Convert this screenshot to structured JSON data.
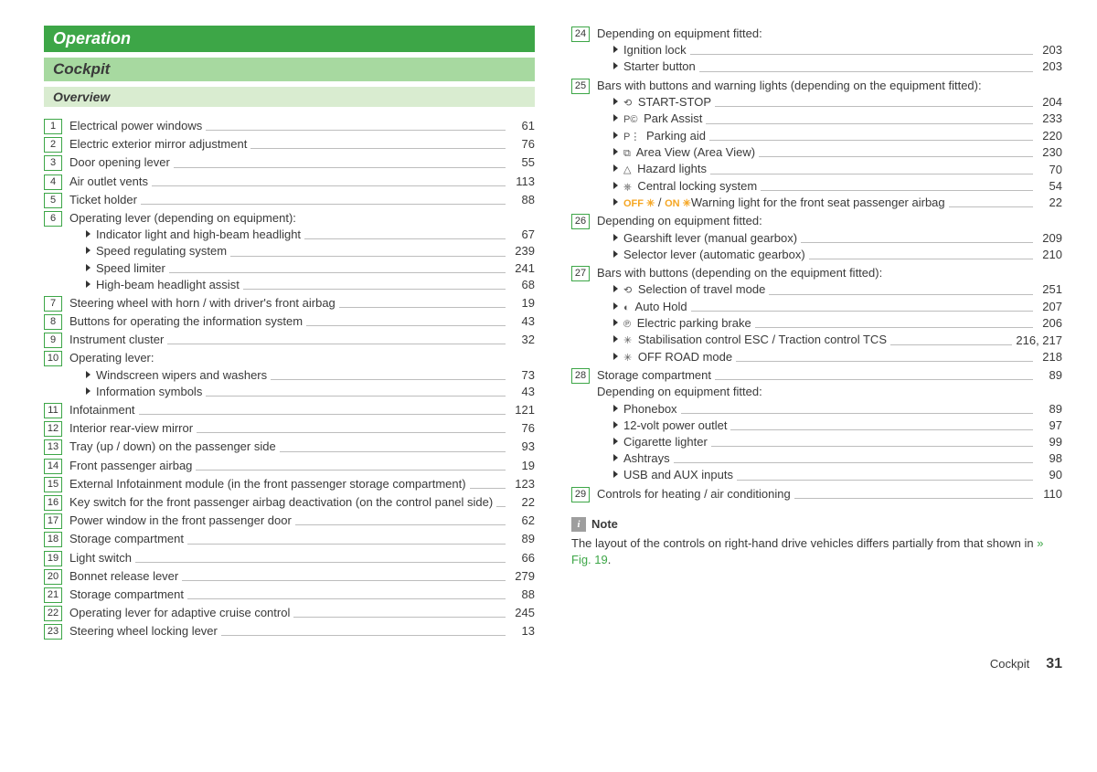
{
  "headings": {
    "main": "Operation",
    "sub": "Cockpit",
    "section": "Overview"
  },
  "footer": {
    "label": "Cockpit",
    "page": "31"
  },
  "note": {
    "label": "Note",
    "text_a": "The layout of the controls on right-hand drive vehicles differs partially from that shown in ",
    "link": "» Fig. 19",
    "text_b": "."
  },
  "left": [
    {
      "n": "1",
      "t": "Electrical power windows",
      "p": "61"
    },
    {
      "n": "2",
      "t": "Electric exterior mirror adjustment",
      "p": "76"
    },
    {
      "n": "3",
      "t": "Door opening lever",
      "p": "55"
    },
    {
      "n": "4",
      "t": "Air outlet vents",
      "p": "113"
    },
    {
      "n": "5",
      "t": "Ticket holder",
      "p": "88"
    },
    {
      "n": "6",
      "t": "Operating lever (depending on equipment):",
      "noleader": true,
      "sub": [
        {
          "t": "Indicator light and high-beam headlight",
          "p": "67"
        },
        {
          "t": "Speed regulating system",
          "p": "239"
        },
        {
          "t": "Speed limiter",
          "p": "241"
        },
        {
          "t": "High-beam headlight assist",
          "p": "68"
        }
      ]
    },
    {
      "n": "7",
      "t": "Steering wheel with horn / with driver's front airbag",
      "p": "19"
    },
    {
      "n": "8",
      "t": "Buttons for operating the information system",
      "p": "43"
    },
    {
      "n": "9",
      "t": "Instrument cluster",
      "p": "32"
    },
    {
      "n": "10",
      "t": "Operating lever:",
      "noleader": true,
      "sub": [
        {
          "t": "Windscreen wipers and washers",
          "p": "73"
        },
        {
          "t": "Information symbols",
          "p": "43"
        }
      ]
    },
    {
      "n": "11",
      "t": "Infotainment",
      "p": "121"
    },
    {
      "n": "12",
      "t": "Interior rear-view mirror",
      "p": "76"
    },
    {
      "n": "13",
      "t": "Tray (up / down) on the passenger side",
      "p": "93"
    },
    {
      "n": "14",
      "t": "Front passenger airbag",
      "p": "19"
    },
    {
      "n": "15",
      "t": "External Infotainment module (in the front passenger storage compartment)",
      "p": "123",
      "wrap": true
    },
    {
      "n": "16",
      "t": "Key switch for the front passenger airbag deactivation (on the control panel side)",
      "p": "22",
      "wrap": true
    },
    {
      "n": "17",
      "t": "Power window in the front passenger door",
      "p": "62"
    },
    {
      "n": "18",
      "t": "Storage compartment",
      "p": "89"
    },
    {
      "n": "19",
      "t": "Light switch",
      "p": "66"
    },
    {
      "n": "20",
      "t": "Bonnet release lever",
      "p": "279"
    },
    {
      "n": "21",
      "t": "Storage compartment",
      "p": "88"
    },
    {
      "n": "22",
      "t": "Operating lever for adaptive cruise control",
      "p": "245"
    },
    {
      "n": "23",
      "t": "Steering wheel locking lever",
      "p": "13"
    }
  ],
  "right": [
    {
      "n": "24",
      "t": "Depending on equipment fitted:",
      "noleader": true,
      "sub": [
        {
          "t": "Ignition lock",
          "p": "203"
        },
        {
          "t": "Starter button",
          "p": "203"
        }
      ]
    },
    {
      "n": "25",
      "t": "Bars with buttons and warning lights (depending on the equipment fitted):",
      "noleader": true,
      "wrap": true,
      "sub": [
        {
          "icon": "⟲",
          "t": "START-STOP",
          "p": "204"
        },
        {
          "icon": "P©",
          "t": "Park Assist",
          "p": "233"
        },
        {
          "icon": "P⋮",
          "t": "Parking aid",
          "p": "220"
        },
        {
          "icon": "⧉",
          "t": "Area View (Area View)",
          "p": "230"
        },
        {
          "icon": "△",
          "t": "Hazard lights",
          "p": "70"
        },
        {
          "icon": "⎈",
          "t": "Central locking system",
          "p": "54"
        },
        {
          "raw": true,
          "html": "<span class='orange'>OFF ✳</span> / <span class='orange'>ON ✳</span>",
          "t": "Warning light for the front seat passenger airbag",
          "p": "22"
        }
      ]
    },
    {
      "n": "26",
      "t": "Depending on equipment fitted:",
      "noleader": true,
      "sub": [
        {
          "t": "Gearshift lever (manual gearbox)",
          "p": "209"
        },
        {
          "t": "Selector lever (automatic gearbox)",
          "p": "210"
        }
      ]
    },
    {
      "n": "27",
      "t": "Bars with buttons (depending on the equipment fitted):",
      "noleader": true,
      "sub": [
        {
          "icon": "⟲",
          "t": "Selection of travel mode",
          "p": "251"
        },
        {
          "icon": "◐",
          "t": "Auto Hold",
          "p": "207"
        },
        {
          "icon": "℗",
          "t": "Electric parking brake",
          "p": "206"
        },
        {
          "icon": "✳",
          "t": "Stabilisation control ESC / Traction control TCS",
          "p": "216, 217"
        },
        {
          "icon": "✳",
          "t": "OFF ROAD mode",
          "p": "218"
        }
      ]
    },
    {
      "n": "28",
      "t": "Storage compartment",
      "p": "89",
      "extra": "Depending on equipment fitted:",
      "sub": [
        {
          "t": "Phonebox",
          "p": "89"
        },
        {
          "t": "12-volt power outlet",
          "p": "97"
        },
        {
          "t": "Cigarette lighter",
          "p": "99"
        },
        {
          "t": "Ashtrays",
          "p": "98"
        },
        {
          "t": "USB and AUX inputs",
          "p": "90"
        }
      ]
    },
    {
      "n": "29",
      "t": "Controls for heating / air conditioning",
      "p": "110"
    }
  ]
}
